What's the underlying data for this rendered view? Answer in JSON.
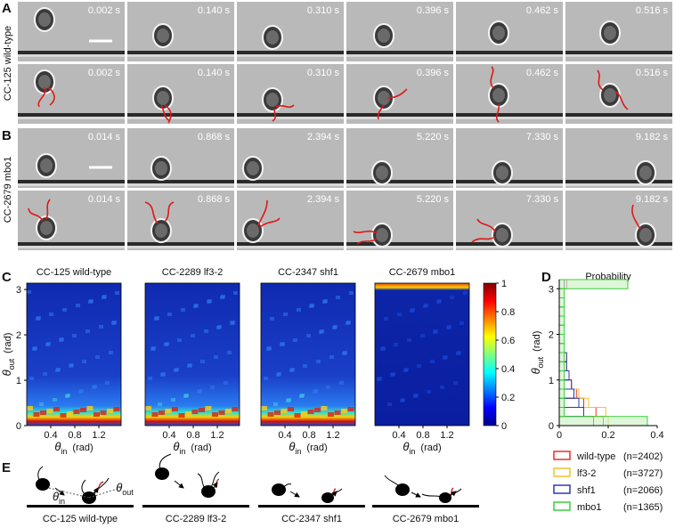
{
  "panel_labels": {
    "a": "A",
    "b": "B",
    "c": "C",
    "d": "D",
    "e": "E"
  },
  "panel_a": {
    "row_label": "CC-125 wild-type",
    "times": [
      "0.002 s",
      "0.140 s",
      "0.310 s",
      "0.396 s",
      "0.462 s",
      "0.516 s"
    ]
  },
  "panel_b": {
    "row_label": "CC-2679 mbo1",
    "times": [
      "0.014 s",
      "0.868 s",
      "2.394 s",
      "5.220 s",
      "7.330 s",
      "9.182 s"
    ]
  },
  "panel_c": {
    "titles": [
      "CC-125 wild-type",
      "CC-2289 lf3-2",
      "CC-2347 shf1",
      "CC-2679 mbo1"
    ],
    "y_label": {
      "symbol": "θ",
      "sub": "out",
      "unit": "(rad)"
    },
    "x_label": {
      "symbol": "θ",
      "sub": "in",
      "unit": "(rad)"
    },
    "xlim": [
      0,
      1.57
    ],
    "xticks": [
      0.4,
      0.8,
      1.2
    ],
    "ylim": [
      0,
      3.14
    ],
    "yticks": [
      0,
      1,
      2,
      3
    ],
    "colorbar": {
      "lim": [
        0,
        1
      ],
      "ticks": [
        0,
        0.2,
        0.4,
        0.6,
        0.8,
        1
      ]
    }
  },
  "chart_data": {
    "type": "histogram",
    "title": "Probability",
    "y_label": {
      "symbol": "θ",
      "sub": "out",
      "unit": "(rad)"
    },
    "bins": [
      0,
      0.2,
      0.4,
      0.6,
      0.8,
      1,
      1.2,
      1.4,
      1.6,
      1.8,
      2,
      2.2,
      2.4,
      2.6,
      2.8,
      3,
      3.2
    ],
    "xlim": [
      0,
      0.4
    ],
    "xticks": [
      0,
      0.2,
      0.4
    ],
    "ylim": [
      0,
      3.2
    ],
    "yticks": [
      0,
      1,
      2,
      3
    ],
    "series": [
      {
        "name": "wild-type",
        "n_label": "(n=2402)",
        "color": "#e8302a",
        "values": [
          0.18,
          0.15,
          0.1,
          0.07,
          0.05,
          0.04,
          0.03,
          0.03,
          0.02,
          0.02,
          0.02,
          0.02,
          0.02,
          0.02,
          0.02,
          0.03
        ]
      },
      {
        "name": "lf3-2",
        "n_label": "(n=3727)",
        "color": "#f2c12e",
        "values": [
          0.2,
          0.19,
          0.12,
          0.08,
          0.05,
          0.04,
          0.03,
          0.03,
          0.02,
          0.02,
          0.02,
          0.02,
          0.02,
          0.02,
          0.02,
          0.02
        ]
      },
      {
        "name": "shf1",
        "n_label": "(n=2066)",
        "color": "#2b3bb0",
        "values": [
          0.14,
          0.1,
          0.08,
          0.06,
          0.05,
          0.04,
          0.03,
          0.03,
          0.02,
          0.02,
          0.02,
          0.02,
          0.02,
          0.02,
          0.02,
          0.02
        ]
      },
      {
        "name": "mbo1",
        "n_label": "(n=1365)",
        "color": "#3ccf3c",
        "values": [
          0.36,
          0.02,
          0.02,
          0.02,
          0.02,
          0.02,
          0.02,
          0.02,
          0.02,
          0.02,
          0.02,
          0.02,
          0.02,
          0.02,
          0.02,
          0.28
        ]
      }
    ]
  },
  "panel_e": {
    "labels": [
      "CC-125 wild-type",
      "CC-2289 lf3-2",
      "CC-2347 shf1",
      "CC-2679 mbo1"
    ],
    "angle_in": {
      "symbol": "θ",
      "sub": "in"
    },
    "angle_out": {
      "symbol": "θ",
      "sub": "out"
    }
  }
}
